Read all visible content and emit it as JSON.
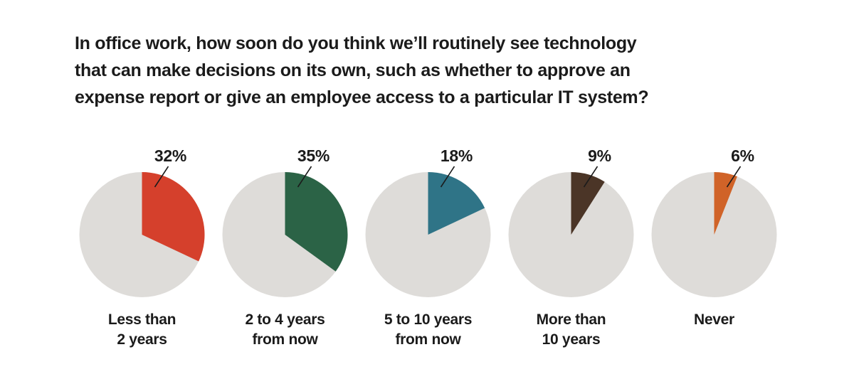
{
  "background": "#ffffff",
  "colors": {
    "text": "#1b1b1b",
    "pie_remainder": "#dedcd9"
  },
  "title": {
    "lines": [
      "In office work, how soon do you think we’ll routinely see technology",
      "that can make decisions on its own, such as whether to approve an",
      "expense report or give an employee access to a particular IT system?"
    ]
  },
  "pies": [
    {
      "percent_label": "32%",
      "value": 32,
      "color": "#d5402c",
      "label_lines": [
        "Less than",
        "2 years"
      ]
    },
    {
      "percent_label": "35%",
      "value": 35,
      "color": "#2b6346",
      "label_lines": [
        "2 to 4 years",
        "from now"
      ]
    },
    {
      "percent_label": "18%",
      "value": 18,
      "color": "#2f7487",
      "label_lines": [
        "5 to 10 years",
        "from now"
      ]
    },
    {
      "percent_label": "9%",
      "value": 9,
      "color": "#4b3527",
      "label_lines": [
        "More than",
        "10 years"
      ]
    },
    {
      "percent_label": "6%",
      "value": 6,
      "color": "#d06328",
      "label_lines": [
        "Never"
      ]
    }
  ],
  "chart_data": {
    "type": "pie",
    "title": "In office work, how soon do you think we’ll routinely see technology that can make decisions on its own, such as whether to approve an expense report or give an employee access to a particular IT system?",
    "categories": [
      "Less than 2 years",
      "2 to 4 years from now",
      "5 to 10 years from now",
      "More than 10 years",
      "Never"
    ],
    "values": [
      32,
      35,
      18,
      9,
      6
    ],
    "unit": "%",
    "slice_colors": [
      "#d5402c",
      "#2b6346",
      "#2f7487",
      "#4b3527",
      "#d06328"
    ],
    "remainder_color": "#dedcd9",
    "layout": "small-multiples, five pies in one row; highlighted slice starts at 12 o'clock and sweeps clockwise; percentage label with short diagonal callout line above-right of each pie; category label centered below each pie; no legend; no axes"
  }
}
